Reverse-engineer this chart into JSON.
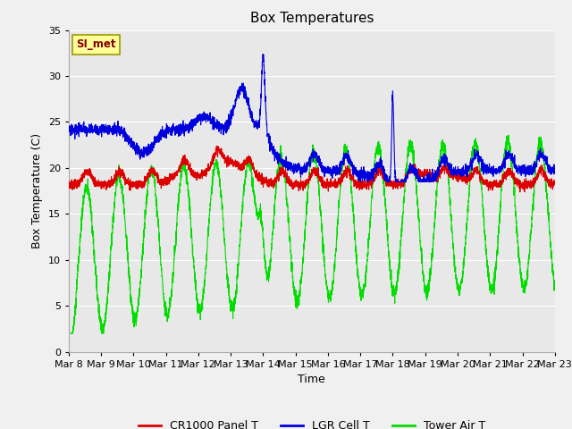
{
  "title": "Box Temperatures",
  "xlabel": "Time",
  "ylabel": "Box Temperature (C)",
  "ylim": [
    0,
    35
  ],
  "xlim": [
    0,
    360
  ],
  "fig_facecolor": "#f0f0f0",
  "ax_facecolor": "#e8e8e8",
  "grid_color": "#ffffff",
  "annotation_text": "SI_met",
  "annotation_bg": "#ffff99",
  "annotation_border": "#999900",
  "line_colors": {
    "panel": "#dd0000",
    "lgr": "#0000dd",
    "tower": "#00dd00"
  },
  "legend_labels": [
    "CR1000 Panel T",
    "LGR Cell T",
    "Tower Air T"
  ],
  "x_tick_labels": [
    "Mar 8",
    "Mar 9",
    "Mar 10",
    "Mar 11",
    "Mar 12",
    "Mar 13",
    "Mar 14",
    "Mar 15",
    "Mar 16",
    "Mar 17",
    "Mar 18",
    "Mar 19",
    "Mar 20",
    "Mar 21",
    "Mar 22",
    "Mar 23"
  ],
  "x_tick_positions": [
    0,
    24,
    48,
    72,
    96,
    120,
    144,
    168,
    192,
    216,
    240,
    264,
    288,
    312,
    336,
    360
  ]
}
